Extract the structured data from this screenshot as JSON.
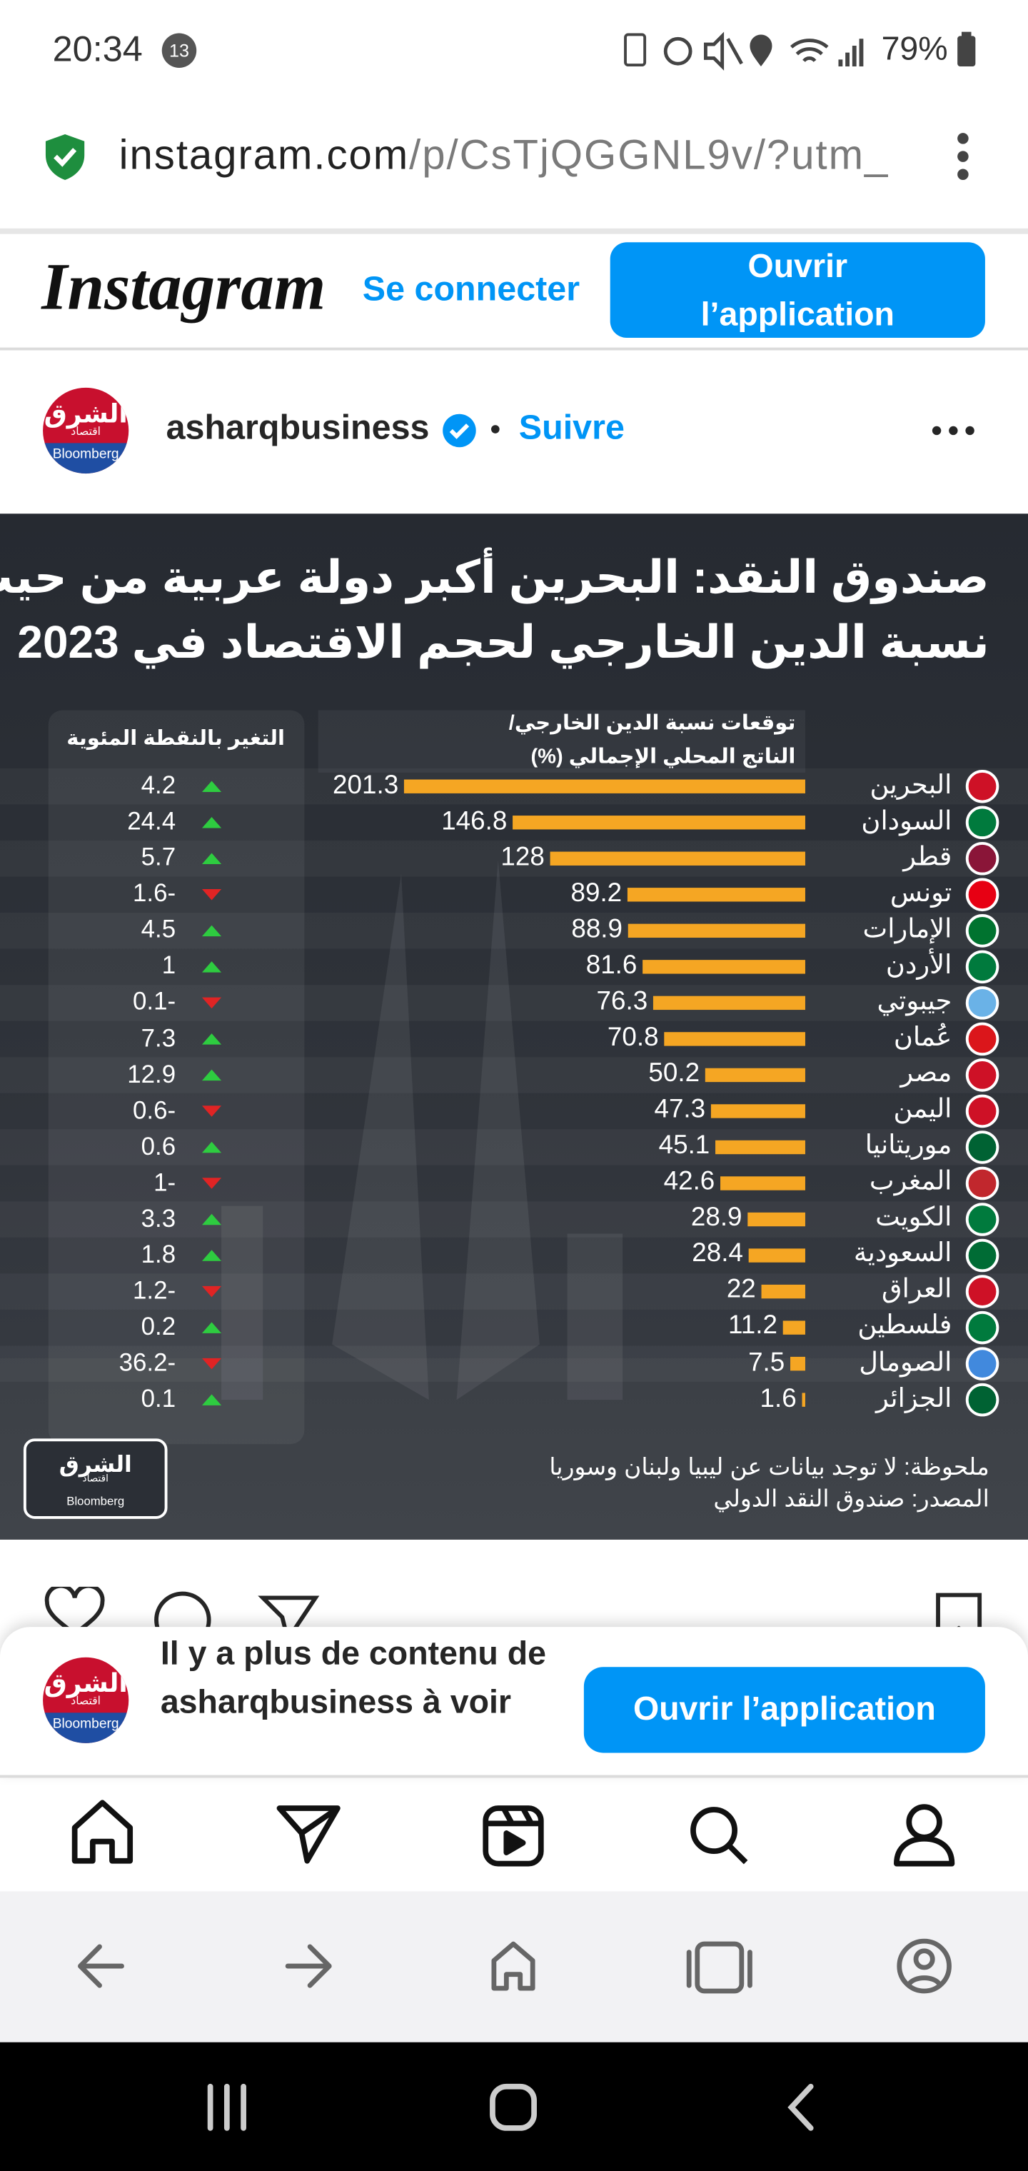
{
  "status_bar": {
    "time": "20:34",
    "notifications": "13",
    "battery": "79%"
  },
  "browser": {
    "url_host": "instagram.com",
    "url_path": "/p/CsTjQGGNL9v/?utm_"
  },
  "header": {
    "logo": "Instagram",
    "login": "Se connecter",
    "open_app": "Ouvrir l’application"
  },
  "post": {
    "account": "asharqbusiness",
    "follow": "Suivre",
    "avatar_text": "الشرق",
    "avatar_tag": "اقتصاد",
    "avatar_sub": "Bloomberg"
  },
  "chart_data": {
    "type": "bar",
    "orientation": "horizontal",
    "title_lines": [
      "صندوق النقد: البحرين أكبر دولة عربية من حيث",
      "نسبة الدين الخارجي لحجم الاقتصاد في 2023"
    ],
    "value_header_lines": [
      "توقعات نسبة الدين الخارجي/",
      "الناتج المحلي الإجمالي (%)"
    ],
    "changes_header": "التغير بالنقطة المئوية",
    "categories": [
      "البحرين",
      "السودان",
      "قطر",
      "تونس",
      "الإمارات",
      "الأردن",
      "جيبوتي",
      "عُمان",
      "مصر",
      "اليمن",
      "موريتانيا",
      "المغرب",
      "الكويت",
      "السعودية",
      "العراق",
      "فلسطين",
      "الصومال",
      "الجزائر"
    ],
    "values": [
      201.3,
      146.8,
      128,
      89.2,
      88.9,
      81.6,
      76.3,
      70.8,
      50.2,
      47.3,
      45.1,
      42.6,
      28.9,
      28.4,
      22,
      11.2,
      7.5,
      1.6
    ],
    "color": "#f5a623",
    "changes": {
      "values": [
        4.2,
        24.4,
        5.7,
        -1.6,
        4.5,
        1,
        -0.1,
        7.3,
        12.9,
        -0.6,
        0.6,
        -1,
        3.3,
        1.8,
        -1.2,
        0.2,
        -36.2,
        0.1
      ],
      "value_labels": [
        "4.2",
        "24.4",
        "5.7",
        "1.6-",
        "4.5",
        "1",
        "0.1-",
        "7.3",
        "12.9",
        "0.6-",
        "0.6",
        "1-",
        "3.3",
        "1.8",
        "1.2-",
        "0.2",
        "36.2-",
        "0.1"
      ],
      "up_color": "#2ecc40",
      "down_color": "#e02424"
    },
    "note": "ملحوظة: لا توجد بيانات عن ليبيا ولبنان وسوريا",
    "source": "المصدر: صندوق النقد الدولي"
  },
  "banner": {
    "text": "Il y a plus de contenu de asharqbusiness à voir",
    "button": "Ouvrir l’application"
  }
}
